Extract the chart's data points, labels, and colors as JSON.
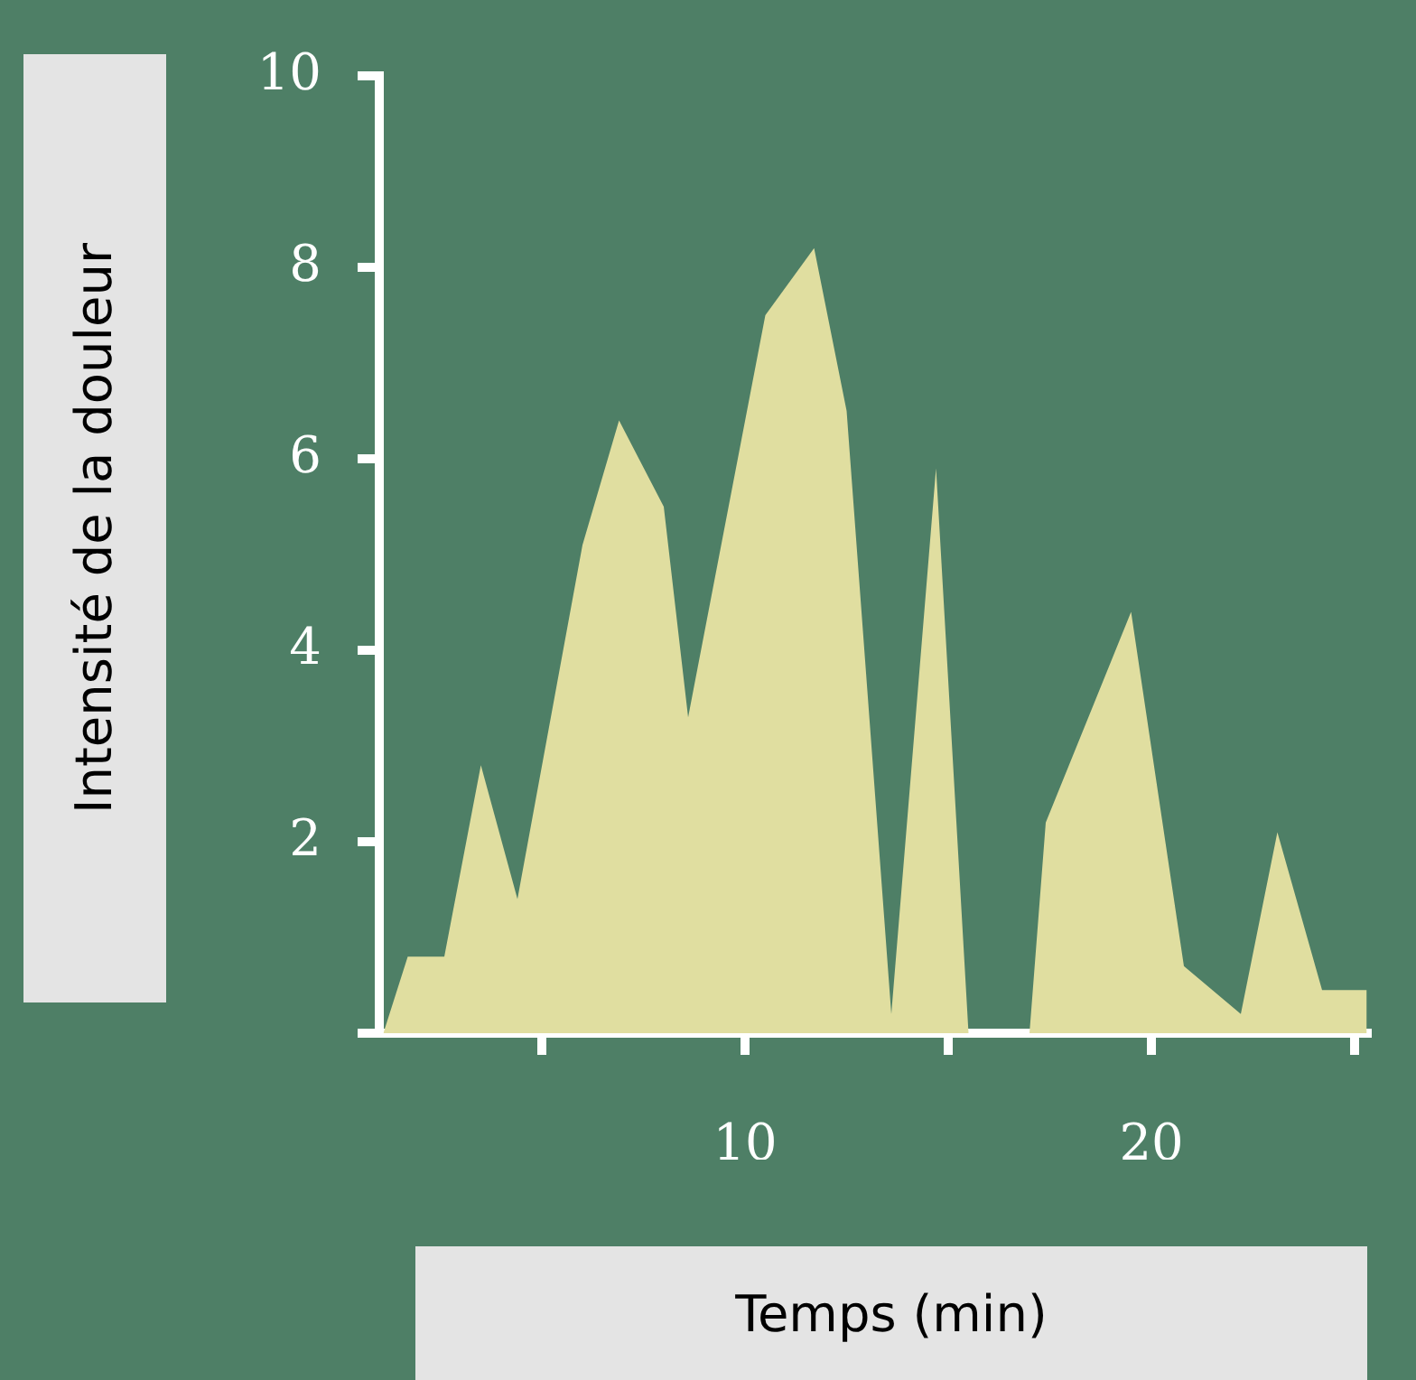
{
  "chart_data": {
    "type": "area",
    "xlabel": "Temps (min)",
    "ylabel": "Intensité de la douleur",
    "color": "#e0dea0",
    "x": [
      1.1,
      1.7,
      2.6,
      3.5,
      4.4,
      6.0,
      6.9,
      8.0,
      8.6,
      10.5,
      11.7,
      12.5,
      13.6,
      14.7,
      15.5,
      17.0,
      17.4,
      19.5,
      20.8,
      22.2,
      23.1,
      24.2,
      25.3
    ],
    "values": [
      0,
      0.8,
      0.8,
      2.8,
      1.4,
      5.1,
      6.4,
      5.5,
      3.3,
      7.5,
      8.2,
      6.5,
      0.2,
      5.9,
      0,
      0,
      2.2,
      4.4,
      0.7,
      0.2,
      2.1,
      0.45,
      0.45
    ],
    "xlim": [
      1,
      25.3
    ],
    "xticks": [
      {
        "value": 5,
        "label": null
      },
      10,
      {
        "value": 15,
        "label": null
      },
      20,
      {
        "value": 25,
        "label": null
      }
    ],
    "ylim": [
      0,
      10
    ],
    "yticks": [
      {
        "value": 0,
        "label": null
      },
      2,
      4,
      6,
      8,
      10
    ],
    "grid": false,
    "legend": false
  }
}
